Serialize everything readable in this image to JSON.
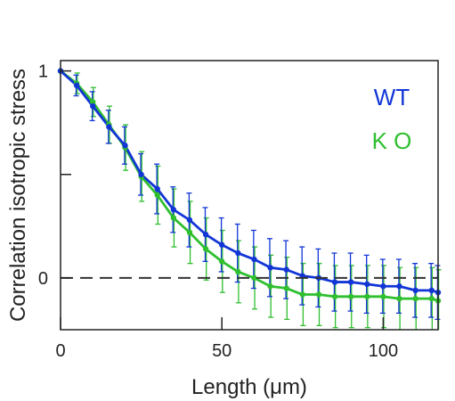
{
  "chart_data": {
    "type": "line",
    "title": "",
    "xlabel": "Length (μm)",
    "ylabel": "Correlation isotropic stress",
    "xlim": [
      0,
      117
    ],
    "ylim": [
      -0.25,
      1.05
    ],
    "x_ticks": [
      0,
      50,
      100
    ],
    "x_tick_labels": [
      "0",
      "50",
      "100"
    ],
    "y_ticks": [
      0,
      0.5,
      1
    ],
    "y_tick_labels": [
      "0",
      "",
      "1"
    ],
    "reference_line": {
      "y": 0,
      "style": "dashed",
      "color": "#333333"
    },
    "legend": {
      "placement": "top-right",
      "entries": [
        "WT",
        "K O"
      ]
    },
    "series": [
      {
        "name": "WT",
        "color": "#1236d6",
        "x": [
          0,
          5,
          10,
          15,
          20,
          25,
          30,
          35,
          40,
          45,
          50,
          55,
          60,
          65,
          70,
          75,
          80,
          85,
          90,
          95,
          100,
          105,
          110,
          115,
          117
        ],
        "y": [
          1.0,
          0.93,
          0.83,
          0.73,
          0.64,
          0.5,
          0.43,
          0.33,
          0.28,
          0.21,
          0.16,
          0.12,
          0.09,
          0.05,
          0.04,
          0.01,
          0.0,
          -0.02,
          -0.02,
          -0.03,
          -0.04,
          -0.04,
          -0.06,
          -0.06,
          -0.07
        ],
        "err": [
          0.0,
          0.05,
          0.07,
          0.08,
          0.09,
          0.1,
          0.12,
          0.11,
          0.13,
          0.13,
          0.13,
          0.14,
          0.14,
          0.14,
          0.14,
          0.14,
          0.14,
          0.14,
          0.14,
          0.14,
          0.13,
          0.13,
          0.13,
          0.13,
          0.13
        ]
      },
      {
        "name": "K O",
        "color": "#2fbf2f",
        "x": [
          0,
          5,
          10,
          15,
          20,
          25,
          30,
          35,
          40,
          45,
          50,
          55,
          60,
          65,
          70,
          75,
          80,
          85,
          90,
          95,
          100,
          105,
          110,
          115,
          117
        ],
        "y": [
          1.0,
          0.94,
          0.85,
          0.74,
          0.63,
          0.49,
          0.4,
          0.29,
          0.22,
          0.14,
          0.08,
          0.03,
          0.0,
          -0.04,
          -0.05,
          -0.08,
          -0.08,
          -0.09,
          -0.09,
          -0.09,
          -0.09,
          -0.1,
          -0.1,
          -0.1,
          -0.11
        ],
        "err": [
          0.0,
          0.05,
          0.07,
          0.09,
          0.11,
          0.12,
          0.14,
          0.14,
          0.15,
          0.15,
          0.15,
          0.15,
          0.15,
          0.15,
          0.15,
          0.15,
          0.15,
          0.15,
          0.15,
          0.15,
          0.15,
          0.15,
          0.15,
          0.15,
          0.15
        ]
      }
    ]
  }
}
